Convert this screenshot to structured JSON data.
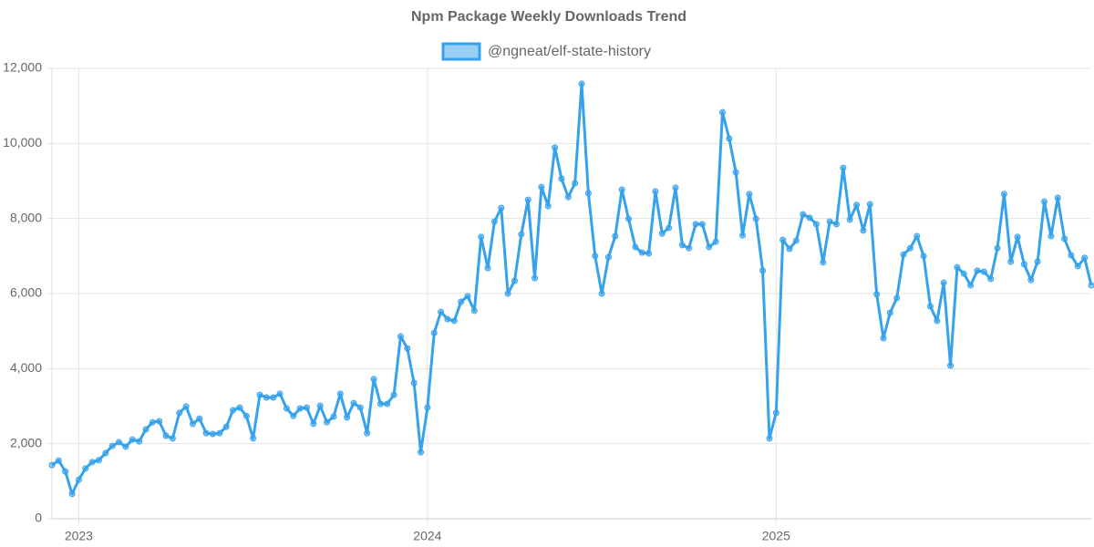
{
  "chart_data": {
    "type": "line",
    "title": "Npm Package Weekly Downloads Trend",
    "categories": [
      null,
      null,
      null,
      null,
      "2023",
      null,
      null,
      null,
      null,
      null,
      null,
      null,
      null,
      null,
      null,
      null,
      null,
      null,
      null,
      null,
      null,
      null,
      null,
      null,
      null,
      null,
      null,
      null,
      null,
      null,
      null,
      null,
      null,
      null,
      null,
      null,
      null,
      null,
      null,
      null,
      null,
      null,
      null,
      null,
      null,
      null,
      null,
      null,
      null,
      null,
      null,
      null,
      null,
      null,
      null,
      null,
      "2024",
      null,
      null,
      null,
      null,
      null,
      null,
      null,
      null,
      null,
      null,
      null,
      null,
      null,
      null,
      null,
      null,
      null,
      null,
      null,
      null,
      null,
      null,
      null,
      null,
      null,
      null,
      null,
      null,
      null,
      null,
      null,
      null,
      null,
      null,
      null,
      null,
      null,
      null,
      null,
      null,
      null,
      null,
      null,
      null,
      null,
      null,
      null,
      null,
      null,
      null,
      null,
      "2025",
      null,
      null,
      null,
      null,
      null,
      null,
      null,
      null,
      null,
      null,
      null,
      null,
      null,
      null,
      null,
      null,
      null,
      null,
      null,
      null,
      null,
      null,
      null,
      null,
      null,
      null,
      null,
      null,
      null,
      null,
      null,
      null,
      null,
      null,
      null,
      null,
      null,
      null,
      null,
      null,
      null,
      null,
      null,
      null,
      null,
      null,
      null
    ],
    "series": [
      {
        "name": "@ngneat/elf-state-history",
        "color": "#36a2eb",
        "values": [
          1430,
          1550,
          1260,
          660,
          1040,
          1340,
          1510,
          1560,
          1750,
          1940,
          2040,
          1920,
          2110,
          2060,
          2380,
          2570,
          2600,
          2210,
          2140,
          2820,
          2990,
          2530,
          2670,
          2280,
          2260,
          2280,
          2450,
          2890,
          2960,
          2740,
          2140,
          3300,
          3230,
          3230,
          3330,
          2940,
          2740,
          2940,
          2960,
          2530,
          3010,
          2570,
          2720,
          3330,
          2700,
          3080,
          2960,
          2280,
          3720,
          3060,
          3060,
          3300,
          4860,
          4540,
          3620,
          1770,
          2960,
          4950,
          5510,
          5320,
          5270,
          5780,
          5930,
          5540,
          7510,
          6680,
          7920,
          8280,
          6000,
          6340,
          7580,
          8500,
          6410,
          8840,
          8330,
          9890,
          9060,
          8570,
          8940,
          11590,
          8670,
          7000,
          6000,
          6970,
          7530,
          8770,
          7990,
          7240,
          7090,
          7070,
          8720,
          7600,
          7750,
          8820,
          7290,
          7210,
          7850,
          7850,
          7240,
          7380,
          10830,
          10130,
          9230,
          7550,
          8650,
          7990,
          6610,
          2140,
          2820,
          7430,
          7190,
          7410,
          8110,
          8020,
          7850,
          6830,
          7920,
          7850,
          9350,
          7970,
          8360,
          7680,
          8380,
          5980,
          4810,
          5490,
          5880,
          7040,
          7210,
          7530,
          7000,
          5660,
          5270,
          6290,
          4080,
          6700,
          6530,
          6220,
          6610,
          6580,
          6390,
          7210,
          8650,
          6850,
          7510,
          6780,
          6360,
          6850,
          8450,
          7530,
          8550,
          7460,
          7020,
          6730,
          6950,
          6220
        ]
      }
    ],
    "ylim": [
      0,
      12000
    ],
    "yticks": [
      0,
      {
        "value": 2000,
        "label": "2,000"
      },
      {
        "value": 4000,
        "label": "4,000"
      },
      {
        "value": 6000,
        "label": "6,000"
      },
      {
        "value": 8000,
        "label": "8,000"
      },
      {
        "value": 10000,
        "label": "10,000"
      },
      {
        "value": 12000,
        "label": "12,000"
      }
    ],
    "grid": true,
    "legend": "top"
  }
}
